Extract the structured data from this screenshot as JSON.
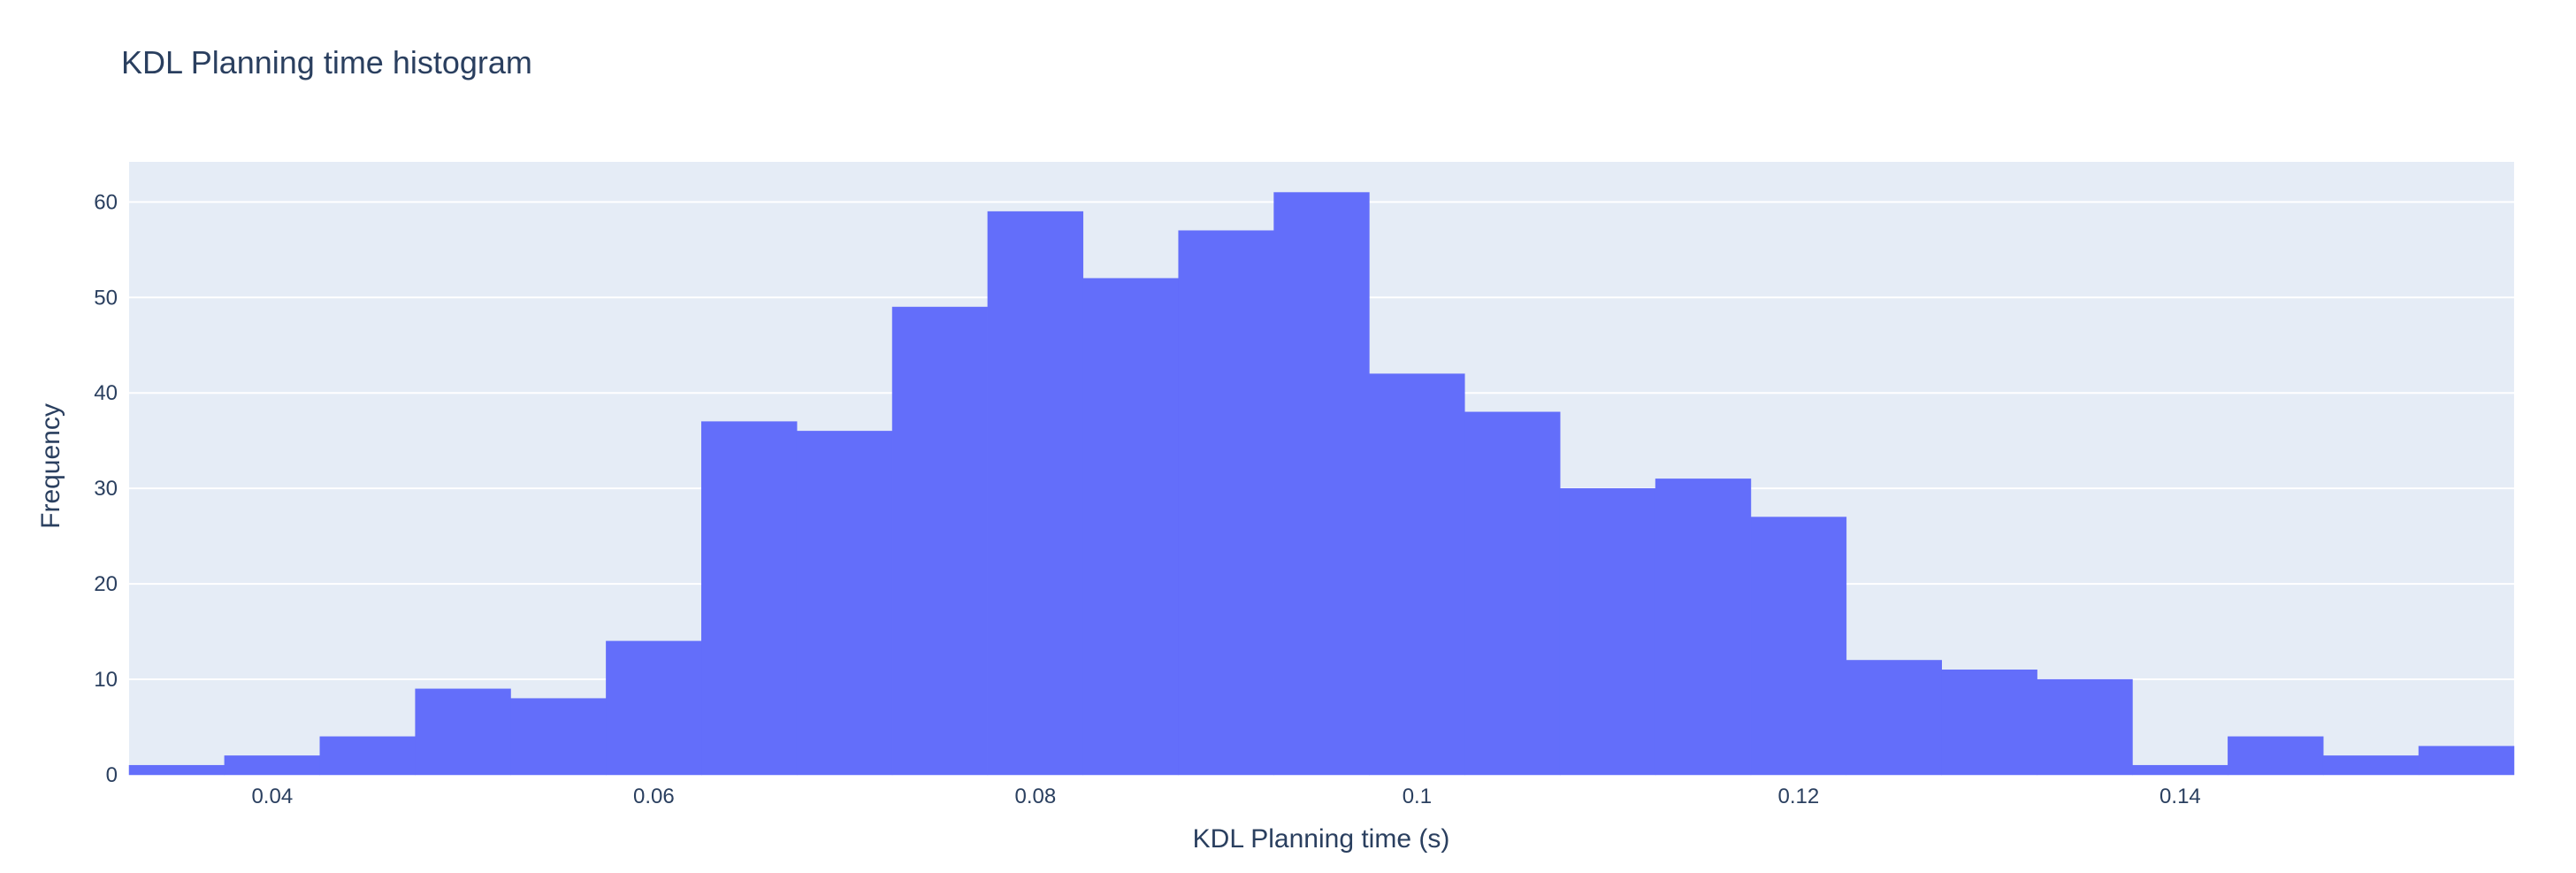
{
  "chart_data": {
    "type": "bar",
    "title": "KDL Planning time histogram",
    "xlabel": "KDL Planning time (s)",
    "ylabel": "Frequency",
    "xlim": [
      0.0325,
      0.1575
    ],
    "ylim": [
      0,
      64.2
    ],
    "x_ticks": [
      0.04,
      0.06,
      0.08,
      0.1,
      0.12,
      0.14
    ],
    "x_tick_labels": [
      "0.04",
      "0.06",
      "0.08",
      "0.1",
      "0.12",
      "0.14"
    ],
    "y_ticks": [
      0,
      10,
      20,
      30,
      40,
      50,
      60
    ],
    "y_tick_labels": [
      "0",
      "10",
      "20",
      "30",
      "40",
      "50",
      "60"
    ],
    "bin_width": 0.005,
    "bins": [
      {
        "start": 0.0325,
        "end": 0.0375,
        "count": 1
      },
      {
        "start": 0.0375,
        "end": 0.0425,
        "count": 2
      },
      {
        "start": 0.0425,
        "end": 0.0475,
        "count": 4
      },
      {
        "start": 0.0475,
        "end": 0.0525,
        "count": 9
      },
      {
        "start": 0.0525,
        "end": 0.0575,
        "count": 8
      },
      {
        "start": 0.0575,
        "end": 0.0625,
        "count": 14
      },
      {
        "start": 0.0625,
        "end": 0.0675,
        "count": 37
      },
      {
        "start": 0.0675,
        "end": 0.0725,
        "count": 36
      },
      {
        "start": 0.0725,
        "end": 0.0775,
        "count": 49
      },
      {
        "start": 0.0775,
        "end": 0.0825,
        "count": 59
      },
      {
        "start": 0.0825,
        "end": 0.0875,
        "count": 52
      },
      {
        "start": 0.0875,
        "end": 0.0925,
        "count": 57
      },
      {
        "start": 0.0925,
        "end": 0.0975,
        "count": 61
      },
      {
        "start": 0.0975,
        "end": 0.1025,
        "count": 42
      },
      {
        "start": 0.1025,
        "end": 0.1075,
        "count": 38
      },
      {
        "start": 0.1075,
        "end": 0.1125,
        "count": 30
      },
      {
        "start": 0.1125,
        "end": 0.1175,
        "count": 31
      },
      {
        "start": 0.1175,
        "end": 0.1225,
        "count": 27
      },
      {
        "start": 0.1225,
        "end": 0.1275,
        "count": 12
      },
      {
        "start": 0.1275,
        "end": 0.1325,
        "count": 11
      },
      {
        "start": 0.1325,
        "end": 0.1375,
        "count": 10
      },
      {
        "start": 0.1375,
        "end": 0.1425,
        "count": 1
      },
      {
        "start": 0.1425,
        "end": 0.1475,
        "count": 4
      },
      {
        "start": 0.1475,
        "end": 0.1525,
        "count": 2
      },
      {
        "start": 0.1525,
        "end": 0.1575,
        "count": 3
      }
    ],
    "grid": true,
    "colors": {
      "bar": "#636efa",
      "plot_background": "#e5ecf6",
      "grid": "#ffffff",
      "text": "#2a3f5f"
    }
  }
}
